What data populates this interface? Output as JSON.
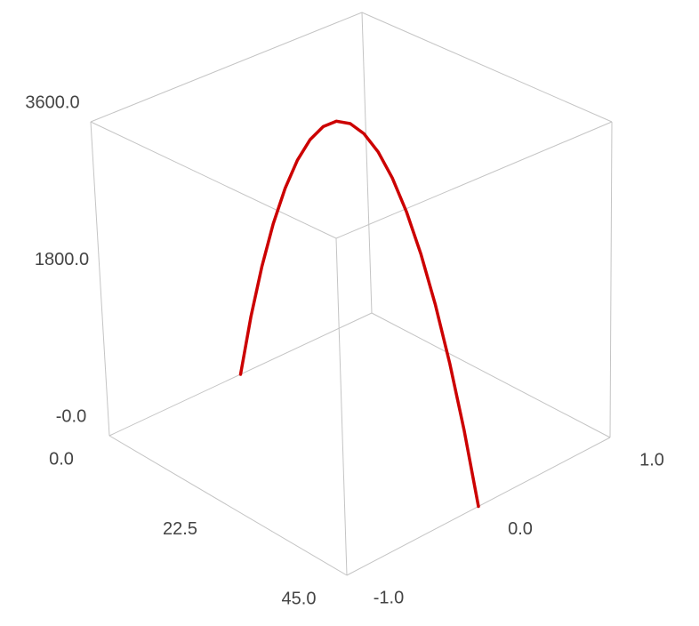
{
  "chart_data": {
    "type": "line3d",
    "series": [
      {
        "color": "#cc0000",
        "x": [
          0,
          2.5,
          5,
          7.5,
          10,
          12.5,
          15,
          17.5,
          20,
          22.5,
          25,
          27.5,
          30,
          32.5,
          35,
          37.5,
          40,
          42.5,
          45
        ],
        "y": [
          0,
          0,
          0,
          0,
          0,
          0,
          0,
          0,
          0,
          0,
          0,
          0,
          0,
          0,
          0,
          0,
          0,
          0,
          0
        ],
        "values": [
          0,
          756,
          1422,
          2000,
          2489,
          2889,
          3200,
          3422,
          3556,
          3600,
          3556,
          3422,
          3200,
          2889,
          2489,
          2000,
          1422,
          756,
          0
        ]
      }
    ],
    "xlim": [
      0,
      45
    ],
    "xticks": [
      {
        "value": 0,
        "label": "0.0"
      },
      {
        "value": 22.5,
        "label": "22.5"
      },
      {
        "value": 45,
        "label": "45.0"
      }
    ],
    "ylim": [
      -1,
      1
    ],
    "yticks": [
      {
        "value": -1,
        "label": "-1.0"
      },
      {
        "value": 0,
        "label": "0.0"
      },
      {
        "value": 1,
        "label": "1.0"
      }
    ],
    "zlim": [
      0,
      3600
    ],
    "zticks": [
      {
        "value": 0,
        "label": "-0.0"
      },
      {
        "value": 1800,
        "label": "1800.0"
      },
      {
        "value": 3600,
        "label": "3600.0"
      }
    ]
  }
}
